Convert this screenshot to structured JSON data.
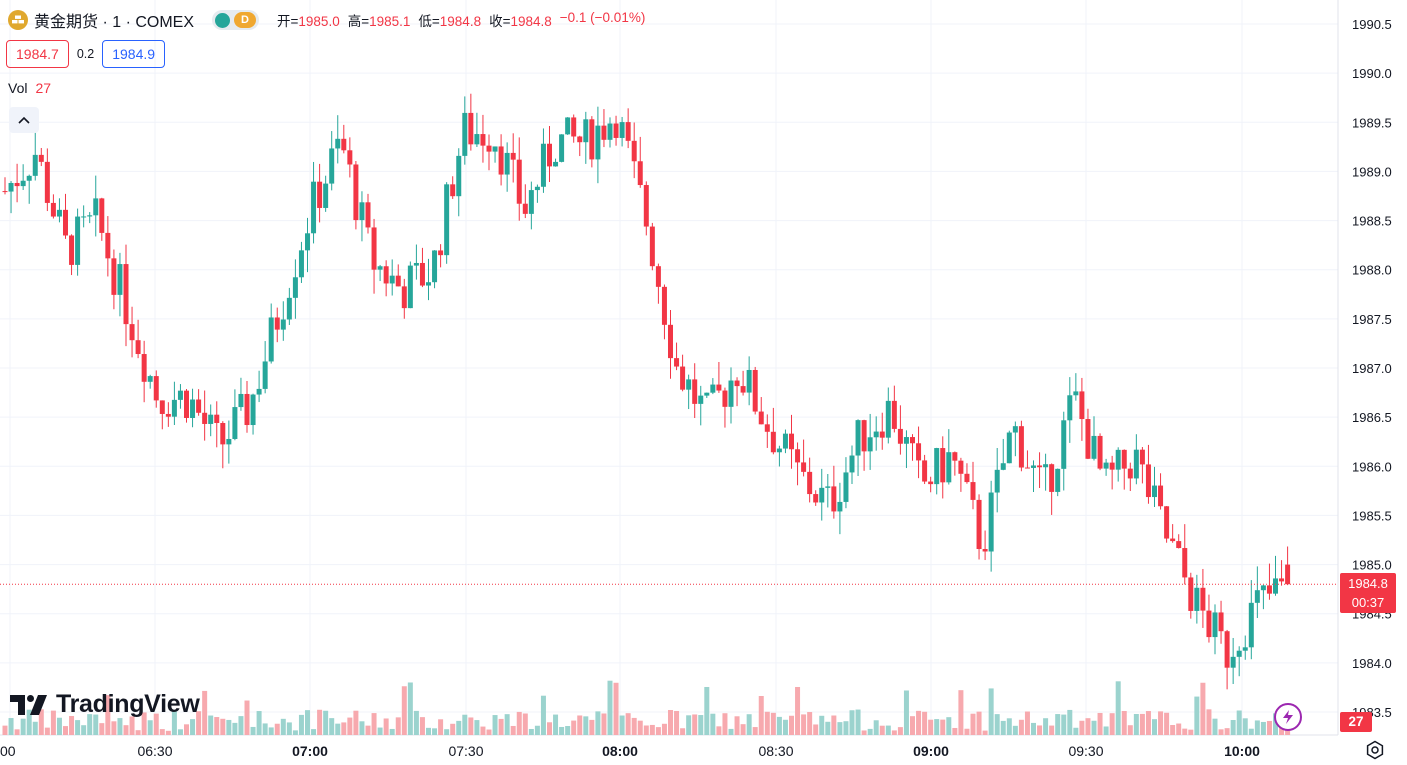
{
  "symbol": {
    "title": "黄金期货 · 1 · COMEX",
    "badge_letter": "D",
    "icon": "gold-coin-icon"
  },
  "ohlc": {
    "open_label": "开=",
    "open": "1985.0",
    "high_label": "高=",
    "high": "1985.1",
    "low_label": "低=",
    "low": "1984.8",
    "close_label": "收=",
    "close": "1984.8",
    "change": "−0.1 (−0.01%)"
  },
  "bidask": {
    "bid": "1984.7",
    "spread": "0.2",
    "ask": "1984.9"
  },
  "volume_legend": {
    "label": "Vol",
    "value": "27"
  },
  "branding": {
    "name": "TradingView",
    "icon": "tradingview-logo-icon"
  },
  "price_scale": {
    "labels": [
      "1990.5",
      "1990.0",
      "1989.5",
      "1989.0",
      "1988.5",
      "1988.0",
      "1987.5",
      "1987.0",
      "1986.5",
      "1986.0",
      "1985.5",
      "1985.0",
      "1984.5",
      "1984.0",
      "1983.5"
    ],
    "last_price": "1984.8",
    "countdown": "00:37",
    "volume_value": "27"
  },
  "time_scale": {
    "labels": [
      "00",
      "06:30",
      "07:00",
      "07:30",
      "08:00",
      "08:30",
      "09:00",
      "09:30",
      "10:00"
    ]
  },
  "icons": {
    "collapse": "chevron-up-icon",
    "bolt": "lightning-bolt-icon",
    "settings": "gear-icon"
  },
  "colors": {
    "up": "#26a69a",
    "down": "#f23645",
    "up_volume": "#9bd3ce",
    "down_volume": "#f7a9ae",
    "ask": "#2962ff",
    "badge": "#f0a830"
  },
  "chart_data": {
    "type": "candlestick",
    "interval": "1",
    "time_labels": [
      "00",
      "06:30",
      "07:00",
      "07:30",
      "08:00",
      "08:30",
      "09:00",
      "09:30",
      "10:00"
    ],
    "y_range": [
      1983.5,
      1990.5
    ],
    "y_ticks": [
      1990.5,
      1990.0,
      1989.5,
      1989.0,
      1988.5,
      1988.0,
      1987.5,
      1987.0,
      1986.5,
      1986.0,
      1985.5,
      1985.0,
      1984.5,
      1984.0,
      1983.5
    ],
    "grid": true,
    "last_price": 1984.8,
    "price_path": [
      1988.8,
      1989.2,
      1988.2,
      1988.5,
      1987.6,
      1986.7,
      1986.7,
      1986.2,
      1986.6,
      1987.6,
      1988.6,
      1989.3,
      1988.1,
      1987.8,
      1988.0,
      1989.4,
      1989.4,
      1988.6,
      1989.3,
      1989.3,
      1989.6,
      1988.5,
      1987.0,
      1986.5,
      1987.0,
      1986.4,
      1985.9,
      1985.6,
      1986.3,
      1986.6,
      1985.8,
      1986.1,
      1985.2,
      1986.4,
      1985.7,
      1986.7,
      1985.8,
      1986.1,
      1985.3,
      1984.6,
      1984.1,
      1984.6,
      1984.8
    ],
    "ohlc_last_bar": {
      "open": 1985.0,
      "high": 1985.1,
      "low": 1984.8,
      "close": 1984.8
    },
    "volume_last": 27
  }
}
